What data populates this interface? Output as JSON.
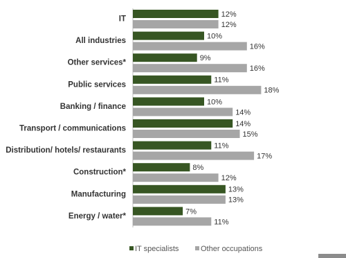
{
  "chart_data": {
    "type": "bar",
    "orientation": "horizontal",
    "categories": [
      "IT",
      "All industries",
      "Other services*",
      "Public services",
      "Banking / finance",
      "Transport / communications",
      "Distribution/ hotels/ restaurants",
      "Construction*",
      "Manufacturing",
      "Energy / water*"
    ],
    "series": [
      {
        "name": "IT specialists",
        "color": "#375623",
        "values": [
          12,
          10,
          9,
          11,
          10,
          14,
          11,
          8,
          13,
          7
        ],
        "value_labels": [
          "12%",
          "10%",
          "9%",
          "11%",
          "10%",
          "14%",
          "11%",
          "8%",
          "13%",
          "7%"
        ]
      },
      {
        "name": "Other occupations",
        "color": "#a6a6a6",
        "values": [
          12,
          16,
          16,
          18,
          14,
          15,
          17,
          12,
          13,
          11
        ],
        "value_labels": [
          "12%",
          "16%",
          "16%",
          "18%",
          "14%",
          "15%",
          "17%",
          "12%",
          "13%",
          "11%"
        ]
      }
    ]
  }
}
